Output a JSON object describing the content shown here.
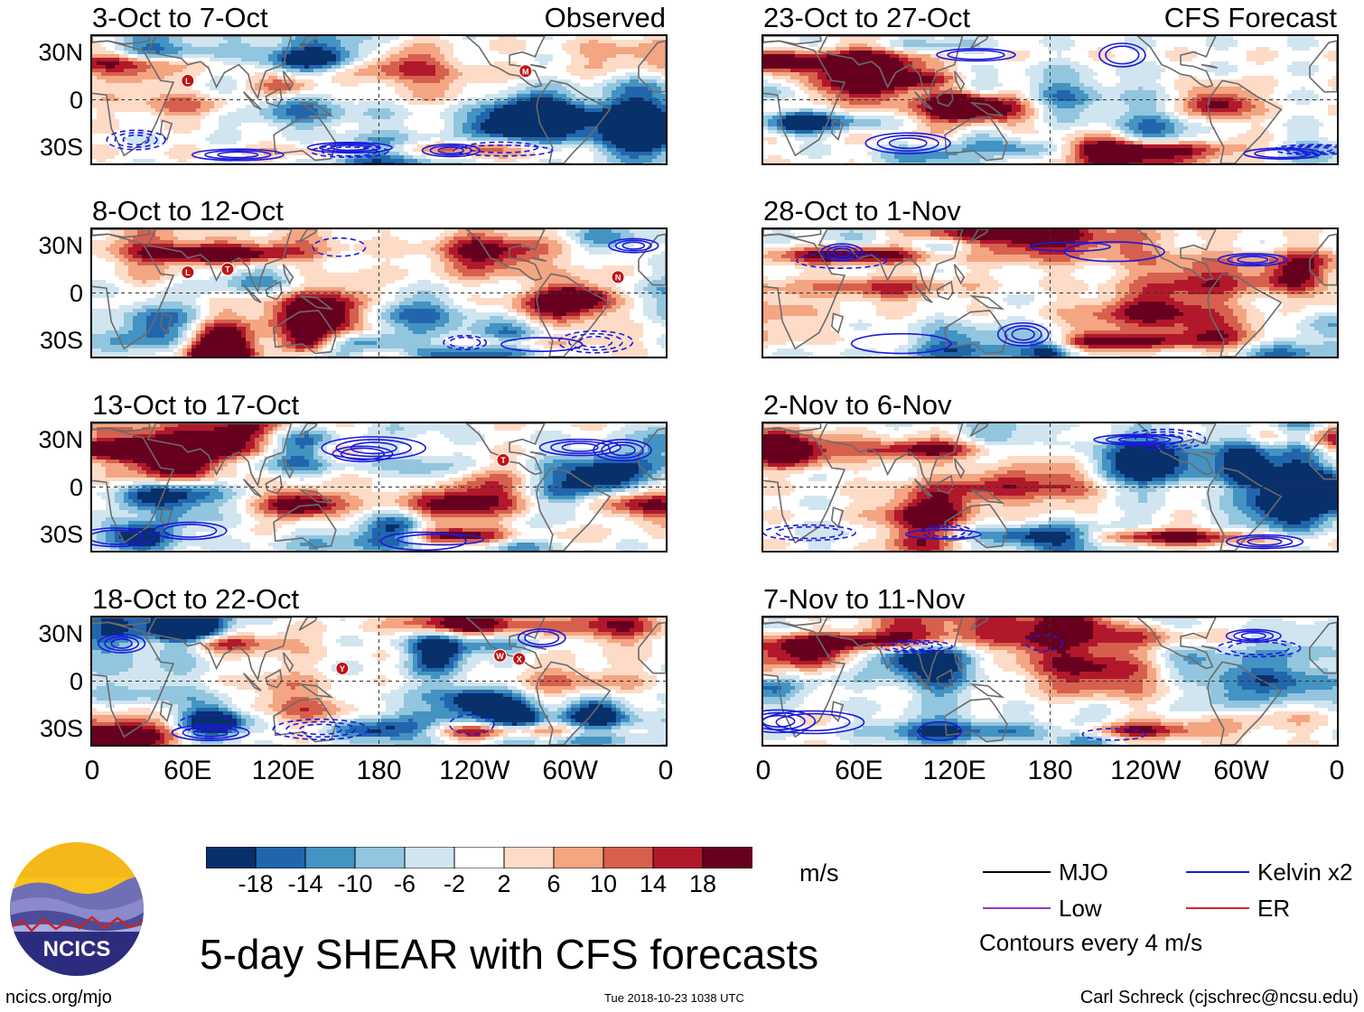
{
  "chart_data": {
    "type": "heatmap",
    "title": "5-day SHEAR with CFS forecasts",
    "variable": "vertical wind shear anomaly",
    "units": "m/s",
    "colorbar": {
      "ticks": [
        "-18",
        "-14",
        "-10",
        "-6",
        "-2",
        "2",
        "6",
        "10",
        "14",
        "18"
      ],
      "colors": [
        "#08306b",
        "#2166ac",
        "#4393c3",
        "#92c5de",
        "#d1e5f0",
        "#ffffff",
        "#fddbc7",
        "#f4a582",
        "#d6604d",
        "#b2182b",
        "#67001f"
      ]
    },
    "xaxis": {
      "tick_labels": [
        "0",
        "60E",
        "120E",
        "180",
        "120W",
        "60W",
        "0"
      ],
      "range_deg": [
        0,
        360
      ]
    },
    "yaxis": {
      "tick_labels": [
        "30N",
        "0",
        "30S"
      ],
      "range_deg": [
        -40,
        40
      ]
    },
    "panels": [
      {
        "period": "3-Oct to 7-Oct",
        "tag": "Observed",
        "column": "left",
        "row": 0,
        "storms": [
          {
            "label": "L",
            "lon": 60,
            "lat": 12
          },
          {
            "label": "M",
            "lon": 272,
            "lat": 18
          }
        ]
      },
      {
        "period": "8-Oct to 12-Oct",
        "tag": "",
        "column": "left",
        "row": 1,
        "storms": [
          {
            "label": "L",
            "lon": 60,
            "lat": 13
          },
          {
            "label": "T",
            "lon": 85,
            "lat": 15
          },
          {
            "label": "N",
            "lon": 330,
            "lat": 10
          }
        ]
      },
      {
        "period": "13-Oct to 17-Oct",
        "tag": "",
        "column": "left",
        "row": 2,
        "storms": [
          {
            "label": "T",
            "lon": 258,
            "lat": 17
          }
        ]
      },
      {
        "period": "18-Oct to 22-Oct",
        "tag": "",
        "column": "left",
        "row": 3,
        "storms": [
          {
            "label": "Y",
            "lon": 157,
            "lat": 8
          },
          {
            "label": "W",
            "lon": 256,
            "lat": 16
          },
          {
            "label": "X",
            "lon": 268,
            "lat": 14
          }
        ]
      },
      {
        "period": "23-Oct to 27-Oct",
        "tag": "CFS Forecast",
        "column": "right",
        "row": 0,
        "storms": []
      },
      {
        "period": "28-Oct to 1-Nov",
        "tag": "",
        "column": "right",
        "row": 1,
        "storms": []
      },
      {
        "period": "2-Nov to 6-Nov",
        "tag": "",
        "column": "right",
        "row": 2,
        "storms": []
      },
      {
        "period": "7-Nov to 11-Nov",
        "tag": "",
        "column": "right",
        "row": 3,
        "storms": []
      }
    ]
  },
  "legend": {
    "items": [
      {
        "label": "MJO",
        "color": "#000000"
      },
      {
        "label": "Kelvin x2",
        "color": "#1a1adc"
      },
      {
        "label": "Low",
        "color": "#9933cc"
      },
      {
        "label": "ER",
        "color": "#dd2222"
      }
    ],
    "note": "Contours every 4 m/s"
  },
  "logo": {
    "text": "NCICS"
  },
  "footer": {
    "site": "ncics.org/mjo",
    "timestamp": "Tue 2018-10-23 1038 UTC",
    "author": "Carl Schreck (cjschrec@ncsu.edu)"
  }
}
